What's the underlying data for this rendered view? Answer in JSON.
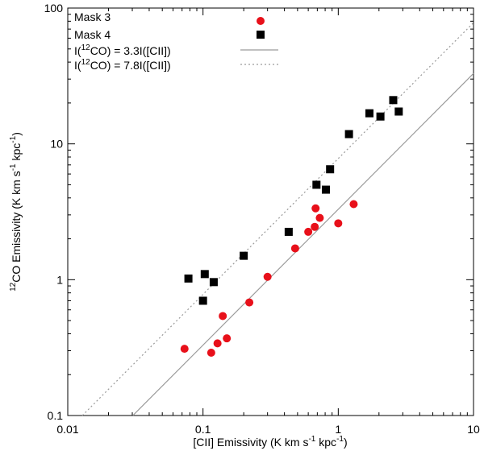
{
  "chart_data": {
    "type": "scatter",
    "title": "",
    "xlabel": {
      "main": "[CII] Emissivity (K km s",
      "sup1": "-1",
      "mid": " kpc",
      "sup2": "-1",
      "end": ")"
    },
    "ylabel": {
      "sup0": "12",
      "main": "CO Emissivity (K km s",
      "sup1": "-1",
      "mid": " kpc",
      "sup2": "-1",
      "end": ")"
    },
    "xscale": "log",
    "yscale": "log",
    "xlim": [
      0.01,
      10
    ],
    "ylim": [
      0.1,
      100
    ],
    "xticks": [
      {
        "value": 0.01,
        "label": "0.01"
      },
      {
        "value": 0.1,
        "label": "0.1"
      },
      {
        "value": 1,
        "label": "1"
      },
      {
        "value": 10,
        "label": "10"
      }
    ],
    "yticks": [
      {
        "value": 0.1,
        "label": "0.1"
      },
      {
        "value": 1,
        "label": "1"
      },
      {
        "value": 10,
        "label": "10"
      },
      {
        "value": 100,
        "label": "100"
      }
    ],
    "legend_position": "top-left",
    "series": [
      {
        "name": "Mask 3",
        "marker": "circle",
        "color": "#e8101a",
        "points": [
          [
            0.073,
            0.31
          ],
          [
            0.115,
            0.29
          ],
          [
            0.128,
            0.34
          ],
          [
            0.14,
            0.54
          ],
          [
            0.15,
            0.37
          ],
          [
            0.22,
            0.68
          ],
          [
            0.3,
            1.05
          ],
          [
            0.48,
            1.7
          ],
          [
            0.6,
            2.25
          ],
          [
            0.67,
            2.45
          ],
          [
            0.68,
            3.35
          ],
          [
            0.73,
            2.85
          ],
          [
            1.0,
            2.6
          ],
          [
            1.3,
            3.6
          ]
        ]
      },
      {
        "name": "Mask 4",
        "marker": "square",
        "color": "#000000",
        "points": [
          [
            0.078,
            1.02
          ],
          [
            0.1,
            0.7
          ],
          [
            0.103,
            1.1
          ],
          [
            0.12,
            0.96
          ],
          [
            0.2,
            1.5
          ],
          [
            0.43,
            2.25
          ],
          [
            0.69,
            5.0
          ],
          [
            0.81,
            4.6
          ],
          [
            0.87,
            6.5
          ],
          [
            1.2,
            11.8
          ],
          [
            1.7,
            16.8
          ],
          [
            2.05,
            15.9
          ],
          [
            2.55,
            21.0
          ],
          [
            2.8,
            17.3
          ]
        ]
      }
    ],
    "lines": [
      {
        "name": "I(12CO) = 3.3I([CII])",
        "legend": {
          "pre": "I(",
          "sup": "12",
          "post": "CO) = 3.3I([CII])"
        },
        "slope": 3.3,
        "style": "solid",
        "color": "#9a9a9a"
      },
      {
        "name": "I(12CO) = 7.8I([CII])",
        "legend": {
          "pre": "I(",
          "sup": "12",
          "post": "CO) = 7.8I([CII])"
        },
        "slope": 7.8,
        "style": "dotted",
        "color": "#9a9a9a"
      }
    ]
  }
}
